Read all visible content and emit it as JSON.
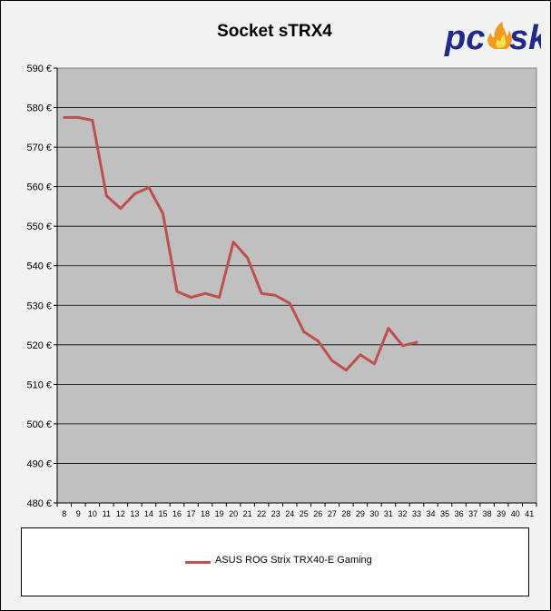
{
  "chart_data": {
    "type": "line",
    "title": "Socket sTRX4",
    "xlabel": "",
    "ylabel": "",
    "categories": [
      "8",
      "9",
      "10",
      "11",
      "12",
      "13",
      "14",
      "15",
      "16",
      "17",
      "18",
      "19",
      "20",
      "21",
      "22",
      "23",
      "24",
      "25",
      "26",
      "27",
      "28",
      "29",
      "30",
      "31",
      "32",
      "33",
      "34",
      "35",
      "36",
      "37",
      "38",
      "39",
      "40",
      "41"
    ],
    "ylim": [
      480,
      590
    ],
    "y_ticks": [
      {
        "value": 590,
        "label": "590 €"
      },
      {
        "value": 580,
        "label": "580 €"
      },
      {
        "value": 570,
        "label": "570 €"
      },
      {
        "value": 560,
        "label": "560 €"
      },
      {
        "value": 550,
        "label": "550 €"
      },
      {
        "value": 540,
        "label": "540 €"
      },
      {
        "value": 530,
        "label": "530 €"
      },
      {
        "value": 520,
        "label": "520 €"
      },
      {
        "value": 510,
        "label": "510 €"
      },
      {
        "value": 500,
        "label": "500 €"
      },
      {
        "value": 490,
        "label": "490 €"
      },
      {
        "value": 480,
        "label": "480 €"
      }
    ],
    "grid": true,
    "legend_position": "bottom",
    "series": [
      {
        "name": "ASUS ROG Strix TRX40-E Gaming",
        "color": "#c0504d",
        "values": [
          577.5,
          577.5,
          576.8,
          557.7,
          554.5,
          558.2,
          559.8,
          553.2,
          533.5,
          532.0,
          533.0,
          532.0,
          546.0,
          542.0,
          533.0,
          532.5,
          530.5,
          523.3,
          521.0,
          516.0,
          513.6,
          517.5,
          515.2,
          524.2,
          519.8,
          520.6,
          null,
          null,
          null,
          null,
          null,
          null,
          null,
          null
        ]
      }
    ]
  },
  "logo": {
    "text": "pcosk"
  }
}
